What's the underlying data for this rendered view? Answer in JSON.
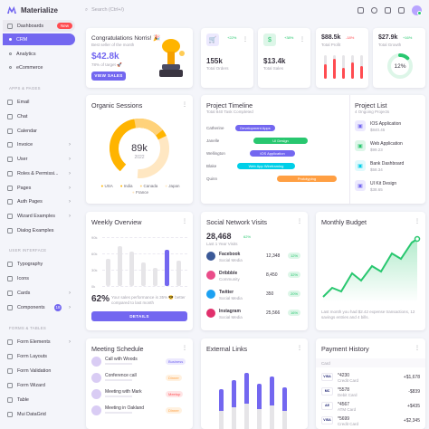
{
  "app": {
    "name": "Materialize"
  },
  "sidebar": {
    "dashboards": {
      "label": "Dashboards",
      "badge": "New"
    },
    "sub": [
      {
        "label": "CRM"
      },
      {
        "label": "Analytics"
      },
      {
        "label": "eCommerce"
      }
    ],
    "sections": {
      "apps": "APPS & PAGES",
      "ui": "USER INTERFACE",
      "forms": "FORMS & TABLES"
    },
    "apps": [
      {
        "label": "Email"
      },
      {
        "label": "Chat"
      },
      {
        "label": "Calendar"
      },
      {
        "label": "Invoice"
      },
      {
        "label": "User"
      },
      {
        "label": "Roles & Permissi..."
      },
      {
        "label": "Pages"
      },
      {
        "label": "Auth Pages"
      },
      {
        "label": "Wizard Examples"
      },
      {
        "label": "Dialog Examples"
      }
    ],
    "ui": [
      {
        "label": "Typography"
      },
      {
        "label": "Icons"
      },
      {
        "label": "Cards"
      },
      {
        "label": "Components",
        "badge": "18"
      }
    ],
    "forms": [
      {
        "label": "Form Elements"
      },
      {
        "label": "Form Layouts"
      },
      {
        "label": "Form Validation"
      },
      {
        "label": "Form Wizard"
      },
      {
        "label": "Table"
      },
      {
        "label": "Mui DataGrid"
      }
    ]
  },
  "topbar": {
    "search_placeholder": "Search (Ctrl+/)"
  },
  "congrats": {
    "title": "Congratulations Norris! 🎉",
    "subtitle": "Best seller of the month",
    "value": "$42.8k",
    "target": "78% of target 🚀",
    "button": "VIEW SALES"
  },
  "stats": [
    {
      "value": "155k",
      "label": "Total Orders",
      "change": "+22%",
      "color": "#7367f0"
    },
    {
      "value": "$13.4k",
      "label": "Total Sales",
      "change": "+38%",
      "color": "#28c76f"
    }
  ],
  "profit": {
    "value": "$88.5k",
    "change": "-18%",
    "label": "Total Profit"
  },
  "growth": {
    "value": "$27.9k",
    "change": "+16%",
    "label": "Total Growth",
    "percent": "12%",
    "progress": 0.12
  },
  "organic": {
    "title": "Organic Sessions",
    "value": "89k",
    "year": "2022",
    "legend": [
      "USA",
      "India",
      "Canada",
      "Japan",
      "France"
    ]
  },
  "timeline": {
    "title": "Project Timeline",
    "subtitle": "Total 840 Task Completed",
    "rows": [
      {
        "name": "Catherine",
        "task": "Development Apps"
      },
      {
        "name": "Janelle",
        "task": "UI Design"
      },
      {
        "name": "Wellington",
        "task": "IOS Application"
      },
      {
        "name": "Blake",
        "task": "Web App Wireframing"
      },
      {
        "name": "Quinn",
        "task": "Prototyping"
      }
    ]
  },
  "projects": {
    "title": "Project List",
    "subtitle": "4 Ongoing Projects",
    "items": [
      {
        "name": "IOS Application",
        "amount": "$840.45"
      },
      {
        "name": "Web Application",
        "amount": "$99.23"
      },
      {
        "name": "Bank Dashboard",
        "amount": "$58.34"
      },
      {
        "name": "UI Kit Design",
        "amount": "$38.65"
      }
    ]
  },
  "weekly": {
    "title": "Weekly Overview",
    "percent": "62%",
    "text": "Your sales performance is 35% 😎 better compared to last month",
    "button": "DETAILS",
    "yticks": [
      "90k",
      "60k",
      "30k",
      "0k"
    ]
  },
  "social": {
    "title": "Social Network Visits",
    "value": "28,468",
    "change": "62%",
    "subtitle": "Last 1 Year Visits",
    "items": [
      {
        "name": "Facebook",
        "type": "Social Media",
        "value": "12,348",
        "change": "12%",
        "color": "#3b5998"
      },
      {
        "name": "Dribbble",
        "type": "Community",
        "value": "8,450",
        "change": "32%",
        "color": "#ea4c89"
      },
      {
        "name": "Twitter",
        "type": "Social Media",
        "value": "350",
        "change": "20%",
        "color": "#1da1f2"
      },
      {
        "name": "Instagram",
        "type": "Social Media",
        "value": "25,566",
        "change": "16%",
        "color": "#e1306c"
      }
    ]
  },
  "budget": {
    "title": "Monthly Budget",
    "text": "Last month you had $2.42 expense transactions, 12 savings entries and 4 bills."
  },
  "meeting": {
    "title": "Meeting Schedule",
    "items": [
      {
        "title": "Call with Woods",
        "tag": "Business"
      },
      {
        "title": "Conference call",
        "tag": "Dinner"
      },
      {
        "title": "Meeting with Mark",
        "tag": "Meetup"
      },
      {
        "title": "Meeting in Oakland",
        "tag": "Dinner"
      }
    ]
  },
  "links": {
    "title": "External Links"
  },
  "payment": {
    "title": "Payment History",
    "col": "Card",
    "items": [
      {
        "brand": "VISA",
        "num": "*4230",
        "type": "Credit Card",
        "amount": "+$1,678"
      },
      {
        "brand": "MC",
        "num": "*5578",
        "type": "Debit Card",
        "amount": "-$839"
      },
      {
        "brand": "AE",
        "num": "*4567",
        "type": "ATM Card",
        "amount": "+$435"
      },
      {
        "brand": "VISA",
        "num": "*5699",
        "type": "Credit Card",
        "amount": "+$2,345"
      }
    ]
  },
  "colors": {
    "primary": "#7367f0",
    "success": "#28c76f",
    "danger": "#ff4c51",
    "warning": "#ff9f43",
    "info": "#00cfe8"
  }
}
